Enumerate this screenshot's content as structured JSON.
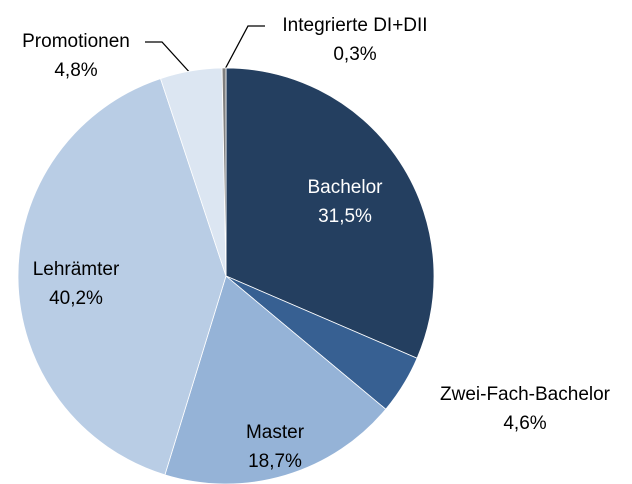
{
  "chart_data": {
    "type": "pie",
    "categories": [
      "Bachelor",
      "Zwei-Fach-Bachelor",
      "Master",
      "Lehrämter",
      "Promotionen",
      "Integrierte DI+DII"
    ],
    "values": [
      31.5,
      4.6,
      18.7,
      40.2,
      4.8,
      0.3
    ],
    "value_labels": [
      "31,5%",
      "4,6%",
      "18,7%",
      "40,2%",
      "4,8%",
      "0,3%"
    ],
    "colors": [
      "#243f60",
      "#376092",
      "#95b3d7",
      "#b9cde5",
      "#dce6f2",
      "#7f7f7f"
    ]
  }
}
